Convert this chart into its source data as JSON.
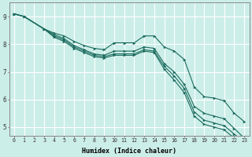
{
  "background_color": "#cceee8",
  "plot_background": "#cceee8",
  "grid_color": "#ffffff",
  "line_color": "#1a6b5e",
  "marker_color": "#1a6b5e",
  "xlabel": "Humidex (Indice chaleur)",
  "xlim": [
    -0.5,
    23.5
  ],
  "ylim": [
    4.7,
    9.5
  ],
  "yticks": [
    5,
    6,
    7,
    8,
    9
  ],
  "xticks": [
    0,
    1,
    2,
    3,
    4,
    5,
    6,
    7,
    8,
    9,
    10,
    11,
    12,
    13,
    14,
    15,
    16,
    17,
    18,
    19,
    20,
    21,
    22,
    23
  ],
  "lines": [
    {
      "x": [
        0,
        1,
        3,
        4,
        5,
        6,
        7,
        8,
        9,
        10,
        11,
        12,
        13,
        14,
        15,
        16,
        17,
        18,
        19,
        20,
        21,
        22,
        23
      ],
      "y": [
        9.1,
        9.0,
        8.55,
        8.4,
        8.3,
        8.1,
        7.95,
        7.85,
        7.8,
        8.05,
        8.05,
        8.05,
        8.3,
        8.3,
        7.9,
        7.75,
        7.45,
        6.45,
        6.1,
        6.05,
        5.95,
        5.5,
        5.2
      ]
    },
    {
      "x": [
        0,
        1,
        3,
        4,
        5,
        6,
        7,
        8,
        9,
        10,
        11,
        12,
        13,
        14,
        15,
        16,
        17,
        18,
        19,
        20,
        21,
        22,
        23
      ],
      "y": [
        9.1,
        9.0,
        8.55,
        8.35,
        8.2,
        7.95,
        7.8,
        7.65,
        7.6,
        7.75,
        7.75,
        7.75,
        7.9,
        7.85,
        7.3,
        7.0,
        6.55,
        5.75,
        5.5,
        5.4,
        5.3,
        4.95,
        4.6
      ]
    },
    {
      "x": [
        0,
        1,
        3,
        4,
        5,
        6,
        7,
        8,
        9,
        10,
        11,
        12,
        13,
        14,
        15,
        16,
        17,
        18,
        19,
        20,
        21,
        22,
        23
      ],
      "y": [
        9.1,
        9.0,
        8.55,
        8.3,
        8.15,
        7.9,
        7.75,
        7.6,
        7.55,
        7.65,
        7.65,
        7.65,
        7.8,
        7.75,
        7.2,
        6.85,
        6.4,
        5.55,
        5.25,
        5.15,
        5.05,
        4.75,
        4.45
      ]
    },
    {
      "x": [
        0,
        1,
        3,
        4,
        5,
        6,
        7,
        8,
        9,
        10,
        11,
        12,
        13,
        14,
        15,
        16,
        17,
        18,
        19,
        20,
        21,
        22,
        23
      ],
      "y": [
        9.1,
        9.0,
        8.55,
        8.25,
        8.1,
        7.85,
        7.7,
        7.55,
        7.5,
        7.6,
        7.6,
        7.6,
        7.75,
        7.7,
        7.1,
        6.7,
        6.25,
        5.4,
        5.1,
        5.0,
        4.9,
        4.6,
        4.3
      ]
    }
  ]
}
